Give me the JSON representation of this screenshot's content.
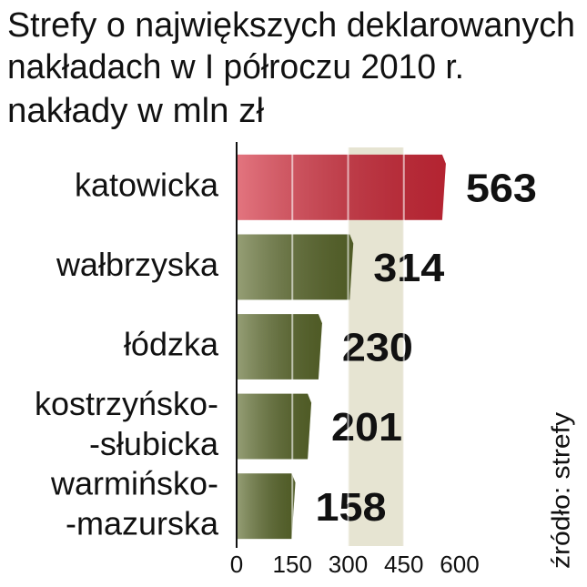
{
  "chart_data": {
    "type": "hbar",
    "title": [
      "Strefy o największych deklarowanych",
      "nakładach w I półroczu 2010 r."
    ],
    "subtitle": "nakłady w mln zł",
    "categories": [
      [
        "katowicka"
      ],
      [
        "wałbrzyska"
      ],
      [
        "łódzka"
      ],
      [
        "kostrzyńsko-",
        "-słubicka"
      ],
      [
        "warmińsko-",
        "-mazurska"
      ]
    ],
    "values": [
      563,
      314,
      230,
      201,
      158
    ],
    "colors": [
      "#d42a3a",
      "#5d6b2c",
      "#5d6b2c",
      "#5d6b2c",
      "#5d6b2c"
    ],
    "xlim": [
      0,
      600
    ],
    "xticks": [
      0,
      150,
      300,
      450,
      600
    ],
    "source": "źródło: strefy"
  }
}
